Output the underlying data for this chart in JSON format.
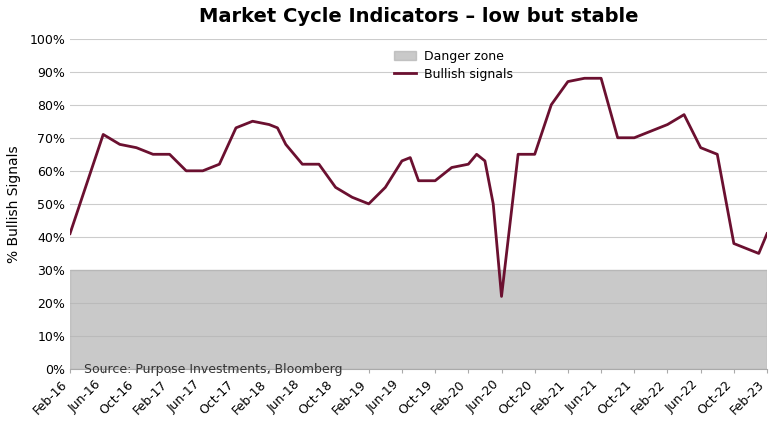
{
  "title": "Market Cycle Indicators – low but stable",
  "ylabel": "% Bullish Signals",
  "source": "Source: Purpose Investments, Bloomberg",
  "line_color": "#6b1030",
  "danger_zone_color": "#b3b3b3",
  "danger_zone_alpha": 0.7,
  "danger_zone_upper": 0.3,
  "ylim": [
    0,
    1.0
  ],
  "ytick_labels": [
    "0%",
    "10%",
    "20%",
    "30%",
    "40%",
    "50%",
    "60%",
    "70%",
    "80%",
    "90%",
    "100%"
  ],
  "background_color": "#ffffff",
  "grid_color": "#cccccc",
  "tick_labels": [
    "Feb-16",
    "Jun-16",
    "Oct-16",
    "Feb-17",
    "Jun-17",
    "Oct-17",
    "Feb-18",
    "Jun-18",
    "Oct-18",
    "Feb-19",
    "Jun-19",
    "Oct-19",
    "Feb-20",
    "Jun-20",
    "Oct-20",
    "Feb-21",
    "Jun-21",
    "Oct-21",
    "Feb-22",
    "Jun-22",
    "Oct-22",
    "Feb-23"
  ],
  "key_x": [
    0,
    4,
    6,
    8,
    10,
    12,
    14,
    16,
    18,
    20,
    22,
    24,
    25,
    26,
    28,
    30,
    32,
    34,
    36,
    38,
    40,
    41,
    42,
    44,
    46,
    48,
    49,
    50,
    51,
    52,
    54,
    56,
    58,
    60,
    62,
    64,
    66,
    68,
    70,
    72,
    74,
    76,
    78,
    80,
    81,
    82,
    83,
    84
  ],
  "key_y": [
    0.41,
    0.71,
    0.68,
    0.67,
    0.65,
    0.65,
    0.6,
    0.6,
    0.62,
    0.73,
    0.75,
    0.74,
    0.73,
    0.68,
    0.62,
    0.62,
    0.55,
    0.52,
    0.5,
    0.55,
    0.63,
    0.64,
    0.57,
    0.57,
    0.61,
    0.62,
    0.65,
    0.63,
    0.5,
    0.22,
    0.65,
    0.65,
    0.8,
    0.87,
    0.88,
    0.88,
    0.7,
    0.7,
    0.72,
    0.74,
    0.77,
    0.67,
    0.65,
    0.38,
    0.37,
    0.36,
    0.35,
    0.41
  ],
  "title_fontsize": 14,
  "ylabel_fontsize": 10,
  "tick_fontsize": 9,
  "source_fontsize": 9,
  "line_width": 2.0
}
